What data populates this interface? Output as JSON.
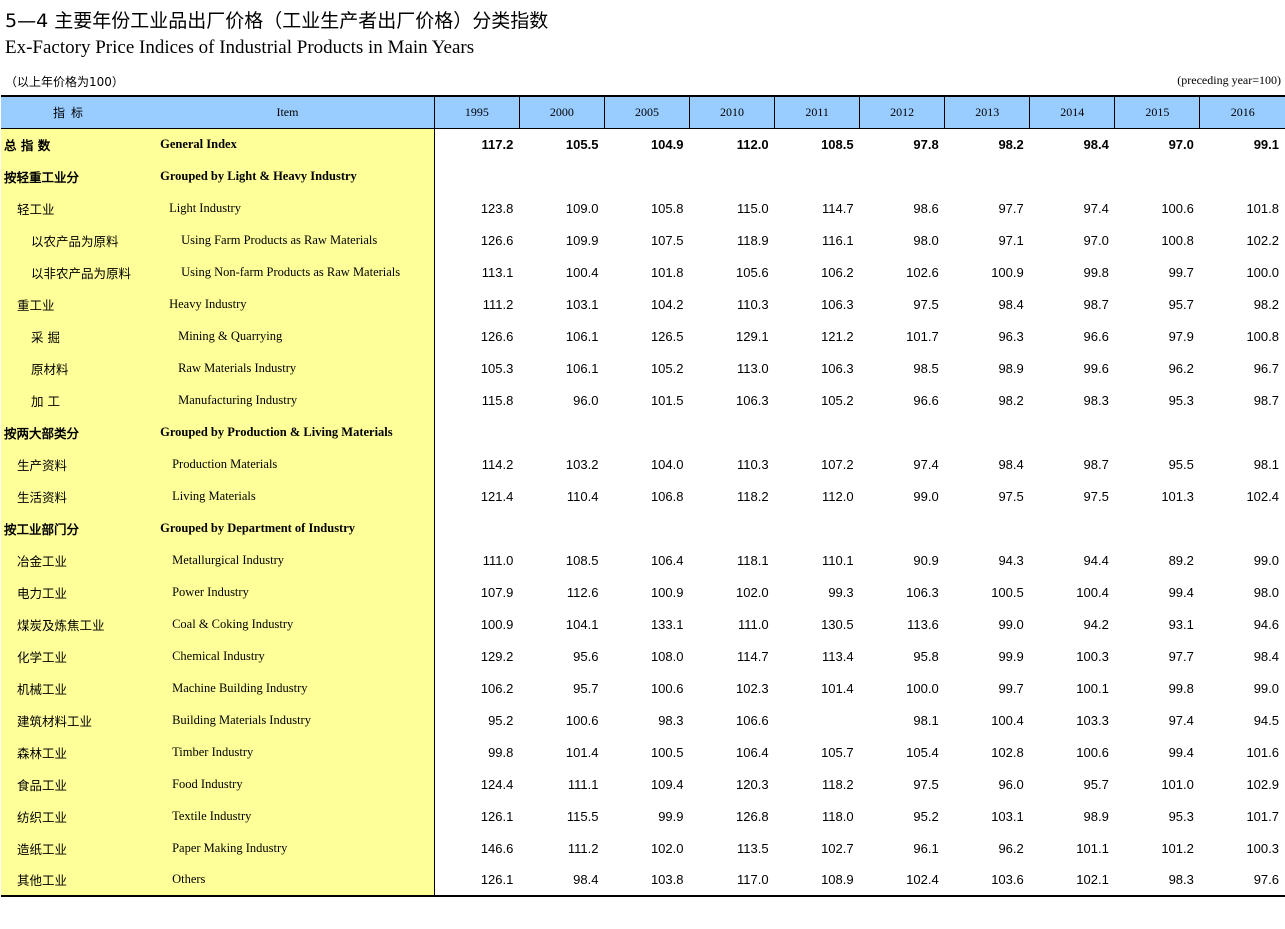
{
  "title": {
    "cn": "5—4  主要年份工业品出厂价格（工业生产者出厂价格）分类指数",
    "en": "Ex-Factory Price Indices of Industrial Products in Main Years"
  },
  "unit": {
    "cn": "（以上年价格为100）",
    "en": "(preceding year=100)"
  },
  "header": {
    "indicator_cn": "指标",
    "item_en": "Item",
    "years": [
      "1995",
      "2000",
      "2005",
      "2010",
      "2011",
      "2012",
      "2013",
      "2014",
      "2015",
      "2016"
    ]
  },
  "rows": [
    {
      "cn": "总  指  数",
      "en": "General Index",
      "bold": true,
      "lvl": 0,
      "enlvl": 0,
      "values": [
        "117.2",
        "105.5",
        "104.9",
        "112.0",
        "108.5",
        "97.8",
        "98.2",
        "98.4",
        "97.0",
        "99.1"
      ]
    },
    {
      "cn": "按轻重工业分",
      "en": "Grouped by Light & Heavy Industry",
      "bold": true,
      "lvl": 0,
      "enlvl": 0,
      "values": [
        "",
        "",
        "",
        "",
        "",
        "",
        "",
        "",
        "",
        ""
      ]
    },
    {
      "cn": "轻工业",
      "en": "Light Industry",
      "bold": false,
      "lvl": 1,
      "enlvl": 1,
      "values": [
        "123.8",
        "109.0",
        "105.8",
        "115.0",
        "114.7",
        "98.6",
        "97.7",
        "97.4",
        "100.6",
        "101.8"
      ]
    },
    {
      "cn": "以农产品为原料",
      "en": "Using Farm Products as Raw Materials",
      "bold": false,
      "lvl": 2,
      "enlvl": 2,
      "values": [
        "126.6",
        "109.9",
        "107.5",
        "118.9",
        "116.1",
        "98.0",
        "97.1",
        "97.0",
        "100.8",
        "102.2"
      ]
    },
    {
      "cn": "以非农产品为原料",
      "en": "Using Non-farm Products as Raw Materials",
      "bold": false,
      "lvl": 2,
      "enlvl": 2,
      "values": [
        "113.1",
        "100.4",
        "101.8",
        "105.6",
        "106.2",
        "102.6",
        "100.9",
        "99.8",
        "99.7",
        "100.0"
      ]
    },
    {
      "cn": "重工业",
      "en": "Heavy Industry",
      "bold": false,
      "lvl": 1,
      "enlvl": 1,
      "values": [
        "111.2",
        "103.1",
        "104.2",
        "110.3",
        "106.3",
        "97.5",
        "98.4",
        "98.7",
        "95.7",
        "98.2"
      ]
    },
    {
      "cn": "采    掘",
      "en": "Mining & Quarrying",
      "bold": false,
      "lvl": 2,
      "enlvl": 3,
      "values": [
        "126.6",
        "106.1",
        "126.5",
        "129.1",
        "121.2",
        "101.7",
        "96.3",
        "96.6",
        "97.9",
        "100.8"
      ]
    },
    {
      "cn": "原材料",
      "en": "Raw Materials Industry",
      "bold": false,
      "lvl": 2,
      "enlvl": 3,
      "values": [
        "105.3",
        "106.1",
        "105.2",
        "113.0",
        "106.3",
        "98.5",
        "98.9",
        "99.6",
        "96.2",
        "96.7"
      ]
    },
    {
      "cn": "加    工",
      "en": "Manufacturing Industry",
      "bold": false,
      "lvl": 2,
      "enlvl": 3,
      "values": [
        "115.8",
        "96.0",
        "101.5",
        "106.3",
        "105.2",
        "96.6",
        "98.2",
        "98.3",
        "95.3",
        "98.7"
      ]
    },
    {
      "cn": "按两大部类分",
      "en": "Grouped by Production & Living Materials",
      "bold": true,
      "lvl": 0,
      "enlvl": 0,
      "values": [
        "",
        "",
        "",
        "",
        "",
        "",
        "",
        "",
        "",
        ""
      ]
    },
    {
      "cn": "生产资料",
      "en": "Production Materials",
      "bold": false,
      "lvl": 1,
      "enlvl": 4,
      "values": [
        "114.2",
        "103.2",
        "104.0",
        "110.3",
        "107.2",
        "97.4",
        "98.4",
        "98.7",
        "95.5",
        "98.1"
      ]
    },
    {
      "cn": "生活资料",
      "en": "Living Materials",
      "bold": false,
      "lvl": 1,
      "enlvl": 4,
      "values": [
        "121.4",
        "110.4",
        "106.8",
        "118.2",
        "112.0",
        "99.0",
        "97.5",
        "97.5",
        "101.3",
        "102.4"
      ]
    },
    {
      "cn": "按工业部门分",
      "en": "Grouped by Department of Industry",
      "bold": true,
      "lvl": 0,
      "enlvl": 0,
      "values": [
        "",
        "",
        "",
        "",
        "",
        "",
        "",
        "",
        "",
        ""
      ]
    },
    {
      "cn": "冶金工业",
      "en": "Metallurgical Industry",
      "bold": false,
      "lvl": 1,
      "enlvl": 4,
      "values": [
        "111.0",
        "108.5",
        "106.4",
        "118.1",
        "110.1",
        "90.9",
        "94.3",
        "94.4",
        "89.2",
        "99.0"
      ]
    },
    {
      "cn": "电力工业",
      "en": "Power Industry",
      "bold": false,
      "lvl": 1,
      "enlvl": 4,
      "values": [
        "107.9",
        "112.6",
        "100.9",
        "102.0",
        "99.3",
        "106.3",
        "100.5",
        "100.4",
        "99.4",
        "98.0"
      ]
    },
    {
      "cn": "煤炭及炼焦工业",
      "en": "Coal & Coking Industry",
      "bold": false,
      "lvl": 1,
      "enlvl": 4,
      "values": [
        "100.9",
        "104.1",
        "133.1",
        "111.0",
        "130.5",
        "113.6",
        "99.0",
        "94.2",
        "93.1",
        "94.6"
      ]
    },
    {
      "cn": "化学工业",
      "en": "Chemical Industry",
      "bold": false,
      "lvl": 1,
      "enlvl": 4,
      "values": [
        "129.2",
        "95.6",
        "108.0",
        "114.7",
        "113.4",
        "95.8",
        "99.9",
        "100.3",
        "97.7",
        "98.4"
      ]
    },
    {
      "cn": "机械工业",
      "en": "Machine Building Industry",
      "bold": false,
      "lvl": 1,
      "enlvl": 4,
      "values": [
        "106.2",
        "95.7",
        "100.6",
        "102.3",
        "101.4",
        "100.0",
        "99.7",
        "100.1",
        "99.8",
        "99.0"
      ]
    },
    {
      "cn": "建筑材料工业",
      "en": "Building Materials Industry",
      "bold": false,
      "lvl": 1,
      "enlvl": 4,
      "values": [
        "95.2",
        "100.6",
        "98.3",
        "106.6",
        "",
        "98.1",
        "100.4",
        "103.3",
        "97.4",
        "94.5"
      ]
    },
    {
      "cn": "森林工业",
      "en": "Timber Industry",
      "bold": false,
      "lvl": 1,
      "enlvl": 4,
      "values": [
        "99.8",
        "101.4",
        "100.5",
        "106.4",
        "105.7",
        "105.4",
        "102.8",
        "100.6",
        "99.4",
        "101.6"
      ]
    },
    {
      "cn": "食品工业",
      "en": "Food Industry",
      "bold": false,
      "lvl": 1,
      "enlvl": 4,
      "values": [
        "124.4",
        "111.1",
        "109.4",
        "120.3",
        "118.2",
        "97.5",
        "96.0",
        "95.7",
        "101.0",
        "102.9"
      ]
    },
    {
      "cn": "纺织工业",
      "en": "Textile Industry",
      "bold": false,
      "lvl": 1,
      "enlvl": 4,
      "values": [
        "126.1",
        "115.5",
        "99.9",
        "126.8",
        "118.0",
        "95.2",
        "103.1",
        "98.9",
        "95.3",
        "101.7"
      ]
    },
    {
      "cn": "造纸工业",
      "en": "Paper Making Industry",
      "bold": false,
      "lvl": 1,
      "enlvl": 4,
      "values": [
        "146.6",
        "111.2",
        "102.0",
        "113.5",
        "102.7",
        "96.1",
        "96.2",
        "101.1",
        "101.2",
        "100.3"
      ]
    },
    {
      "cn": "其他工业",
      "en": "Others",
      "bold": false,
      "lvl": 1,
      "enlvl": 4,
      "values": [
        "126.1",
        "98.4",
        "103.8",
        "117.0",
        "108.9",
        "102.4",
        "103.6",
        "102.1",
        "98.3",
        "97.6"
      ]
    }
  ],
  "colors": {
    "header_bg": "#99ccff",
    "label_bg": "#ffff99"
  }
}
